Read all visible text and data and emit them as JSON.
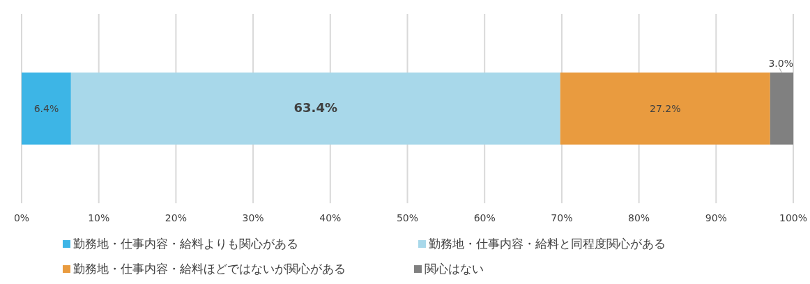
{
  "chart_data": {
    "type": "bar",
    "orientation": "horizontal",
    "stacked": true,
    "categories": [
      null
    ],
    "series": [
      {
        "name": "勤務地・仕事内容・給料よりも関心がある",
        "color": "#3db5e6",
        "values": [
          6.4
        ],
        "value_labels": [
          "6.4%"
        ]
      },
      {
        "name": "勤務地・仕事内容・給料と同程度関心がある",
        "color": "#a8d8ea",
        "values": [
          63.4
        ],
        "value_labels": [
          "63.4%"
        ]
      },
      {
        "name": "勤務地・仕事内容・給料ほどではないが関心がある",
        "color": "#e99b3f",
        "values": [
          27.2
        ],
        "value_labels": [
          "27.2%"
        ]
      },
      {
        "name": "関心はない",
        "color": "#808080",
        "values": [
          3.0
        ],
        "value_labels": [
          "3.0%"
        ]
      }
    ],
    "xlim": [
      0,
      100
    ],
    "xticks": [
      {
        "value": 0,
        "label": "0%"
      },
      {
        "value": 10,
        "label": "10%"
      },
      {
        "value": 20,
        "label": "20%"
      },
      {
        "value": 30,
        "label": "30%"
      },
      {
        "value": 40,
        "label": "40%"
      },
      {
        "value": 50,
        "label": "50%"
      },
      {
        "value": 60,
        "label": "60%"
      },
      {
        "value": 70,
        "label": "70%"
      },
      {
        "value": 80,
        "label": "80%"
      },
      {
        "value": 90,
        "label": "90%"
      },
      {
        "value": 100,
        "label": "100%"
      }
    ],
    "grid": "x",
    "legend": "bottom"
  }
}
